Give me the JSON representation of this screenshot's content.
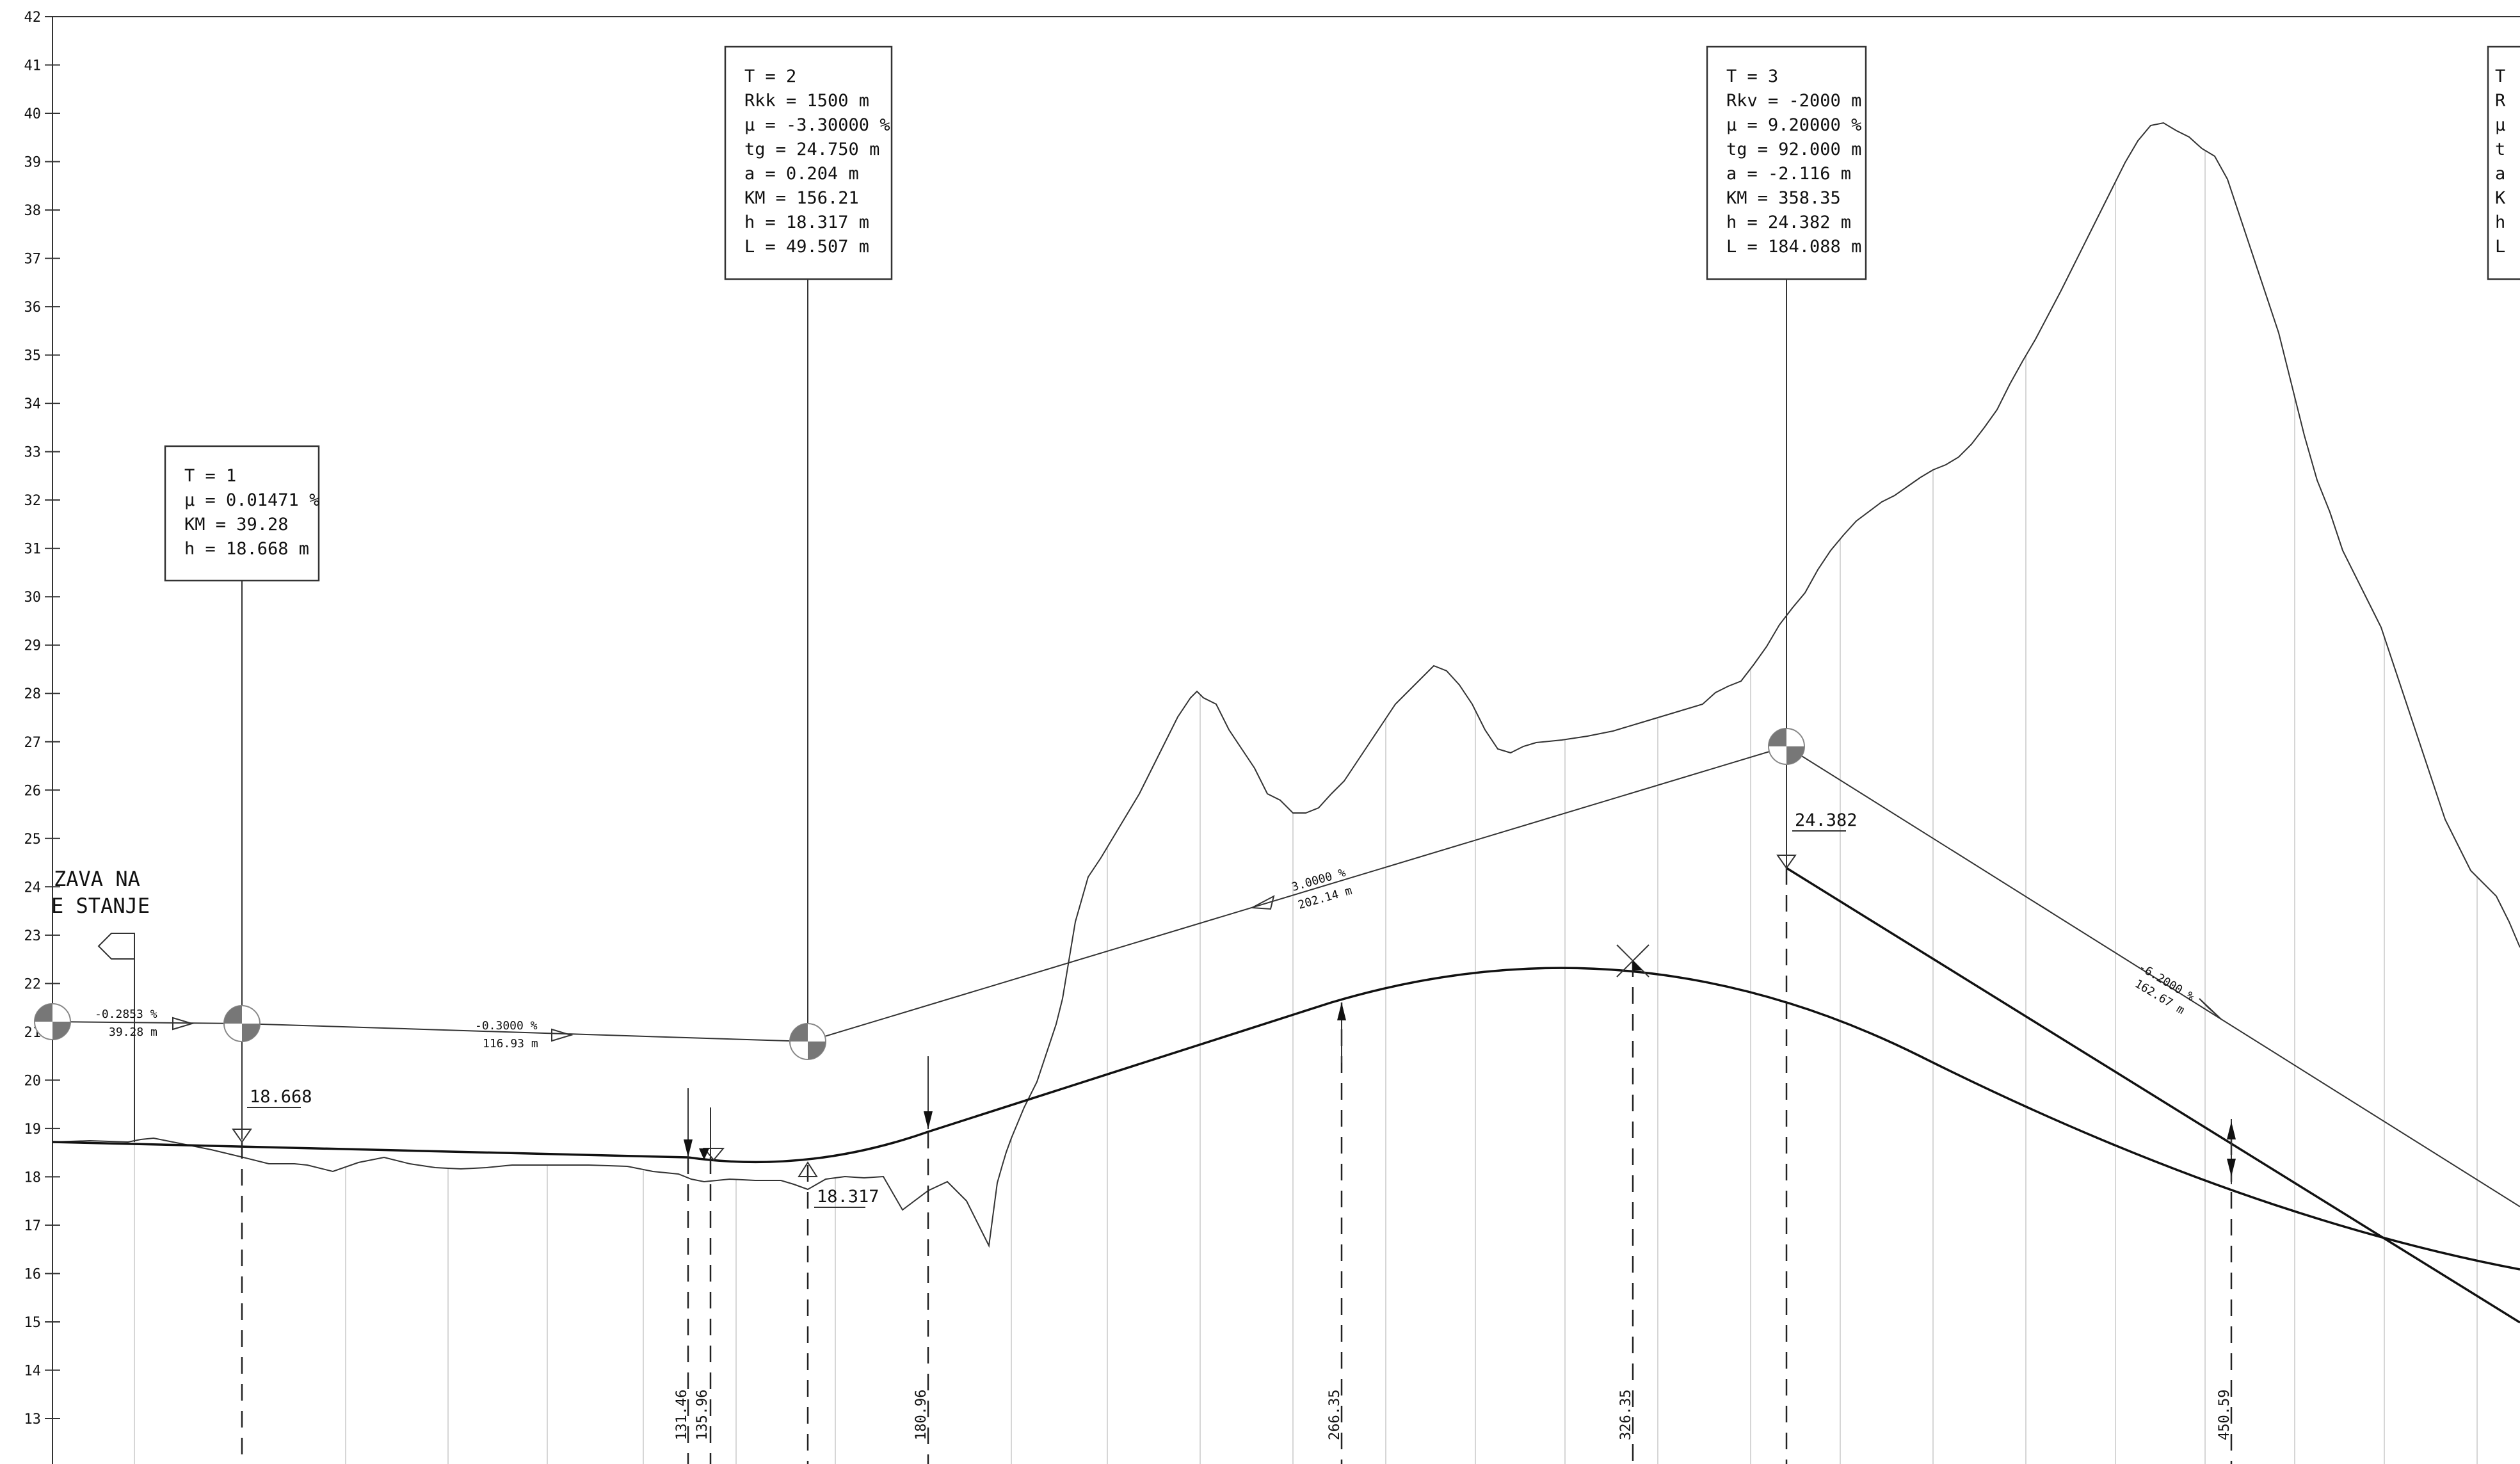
{
  "y_axis": {
    "min": 13,
    "max": 42,
    "ticks": [
      13,
      14,
      15,
      16,
      17,
      18,
      19,
      20,
      21,
      22,
      23,
      24,
      25,
      26,
      27,
      28,
      29,
      30,
      31,
      32,
      33,
      34,
      35,
      36,
      37,
      38,
      39,
      40,
      41,
      42
    ]
  },
  "left_label": {
    "line1": "ZAVA NA",
    "line2": "E STANJE"
  },
  "tangent_boxes": [
    {
      "id": "T1",
      "lines": [
        "T = 1",
        "μ = 0.01471 %",
        "KM = 39.28",
        "h = 18.668 m"
      ]
    },
    {
      "id": "T2",
      "lines": [
        "T = 2",
        "Rkk = 1500 m",
        "μ = -3.30000 %",
        "tg = 24.750 m",
        "a = 0.204 m",
        "KM = 156.21",
        "h = 18.317 m",
        "L = 49.507 m"
      ]
    },
    {
      "id": "T3",
      "lines": [
        "T = 3",
        "Rkv = -2000 m",
        "μ = 9.20000 %",
        "tg = 92.000 m",
        "a = -2.116 m",
        "KM = 358.35",
        "h = 24.382 m",
        "L = 184.088 m"
      ]
    },
    {
      "id": "T4",
      "lines": [
        "T",
        "R",
        "μ",
        "t",
        "a",
        "K",
        "h",
        "L"
      ]
    }
  ],
  "grade_labels": [
    {
      "id": "g0",
      "pct": "-0.2853 %",
      "len": "39.28 m"
    },
    {
      "id": "g1",
      "pct": "-0.3000 %",
      "len": "116.93 m"
    },
    {
      "id": "g2",
      "pct": "3.0000 %",
      "len": "202.14 m"
    },
    {
      "id": "g3",
      "pct": "-6.2000 %",
      "len": "162.67 m"
    }
  ],
  "elevation_labels": {
    "e1": "18.668",
    "e2": "18.317",
    "e3": "24.382"
  },
  "station_labels": [
    "131.46",
    "135.96",
    "180.96",
    "266.35",
    "326.35",
    "450.59"
  ]
}
